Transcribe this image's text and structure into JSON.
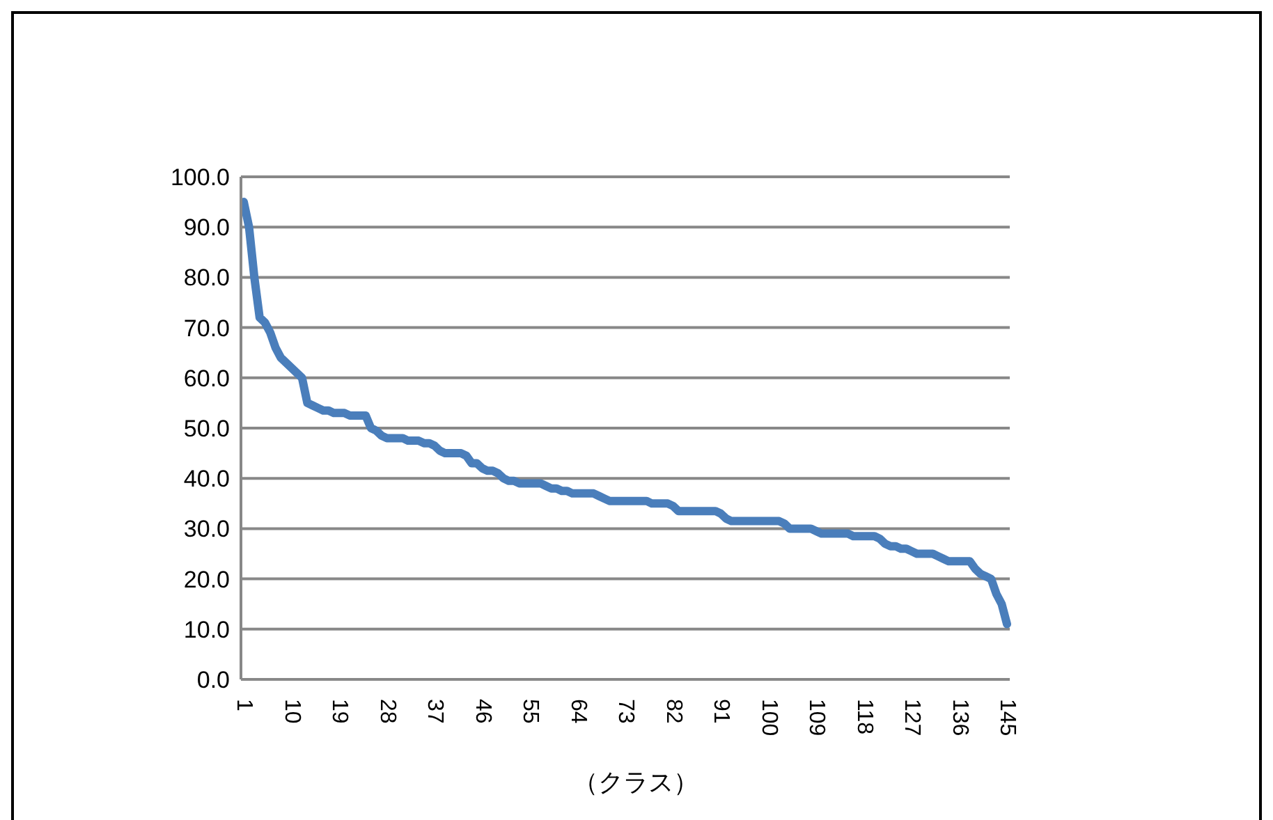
{
  "chart_data": {
    "type": "line",
    "xlabel": "（クラス）",
    "categories": [
      "1",
      null,
      null,
      null,
      null,
      null,
      null,
      null,
      null,
      "10",
      null,
      null,
      null,
      null,
      null,
      null,
      null,
      null,
      "19",
      null,
      null,
      null,
      null,
      null,
      null,
      null,
      null,
      "28",
      null,
      null,
      null,
      null,
      null,
      null,
      null,
      null,
      "37",
      null,
      null,
      null,
      null,
      null,
      null,
      null,
      null,
      "46",
      null,
      null,
      null,
      null,
      null,
      null,
      null,
      null,
      "55",
      null,
      null,
      null,
      null,
      null,
      null,
      null,
      null,
      "64",
      null,
      null,
      null,
      null,
      null,
      null,
      null,
      null,
      "73",
      null,
      null,
      null,
      null,
      null,
      null,
      null,
      null,
      "82",
      null,
      null,
      null,
      null,
      null,
      null,
      null,
      null,
      "91",
      null,
      null,
      null,
      null,
      null,
      null,
      null,
      null,
      "100",
      null,
      null,
      null,
      null,
      null,
      null,
      null,
      null,
      "109",
      null,
      null,
      null,
      null,
      null,
      null,
      null,
      null,
      "118",
      null,
      null,
      null,
      null,
      null,
      null,
      null,
      null,
      "127",
      null,
      null,
      null,
      null,
      null,
      null,
      null,
      null,
      "136",
      null,
      null,
      null,
      null,
      null,
      null,
      null,
      null,
      "145"
    ],
    "series": [
      {
        "color": "#4a7ebb",
        "values": [
          95,
          90,
          80,
          72,
          71,
          69,
          66,
          64,
          63,
          62,
          61,
          60,
          55,
          54.5,
          54,
          53.5,
          53.5,
          53,
          53,
          53,
          52.5,
          52.5,
          52.5,
          52.5,
          50,
          49.5,
          48.5,
          48,
          48,
          48,
          48,
          47.5,
          47.5,
          47.5,
          47,
          47,
          46.5,
          45.5,
          45,
          45,
          45,
          45,
          44.5,
          43,
          43,
          42,
          41.5,
          41.5,
          41,
          40,
          39.5,
          39.5,
          39,
          39,
          39,
          39,
          39,
          38.5,
          38,
          38,
          37.5,
          37.5,
          37,
          37,
          37,
          37,
          37,
          36.5,
          36,
          35.5,
          35.5,
          35.5,
          35.5,
          35.5,
          35.5,
          35.5,
          35.5,
          35,
          35,
          35,
          35,
          34.5,
          33.5,
          33.5,
          33.5,
          33.5,
          33.5,
          33.5,
          33.5,
          33.5,
          33,
          32,
          31.5,
          31.5,
          31.5,
          31.5,
          31.5,
          31.5,
          31.5,
          31.5,
          31.5,
          31.5,
          31,
          30,
          30,
          30,
          30,
          30,
          29.5,
          29,
          29,
          29,
          29,
          29,
          29,
          28.5,
          28.5,
          28.5,
          28.5,
          28.5,
          28,
          27,
          26.5,
          26.5,
          26,
          26,
          25.5,
          25,
          25,
          25,
          25,
          24.5,
          24,
          23.5,
          23.5,
          23.5,
          23.5,
          23.5,
          22,
          21,
          20.5,
          20,
          17,
          15,
          11
        ]
      }
    ],
    "ylim": [
      0,
      100
    ],
    "yticks": [
      {
        "value": 0,
        "label": "0.0"
      },
      {
        "value": 10,
        "label": "10.0"
      },
      {
        "value": 20,
        "label": "20.0"
      },
      {
        "value": 30,
        "label": "30.0"
      },
      {
        "value": 40,
        "label": "40.0"
      },
      {
        "value": 50,
        "label": "50.0"
      },
      {
        "value": 60,
        "label": "60.0"
      },
      {
        "value": 70,
        "label": "70.0"
      },
      {
        "value": 80,
        "label": "80.0"
      },
      {
        "value": 90,
        "label": "90.0"
      },
      {
        "value": 100,
        "label": "100.0"
      }
    ],
    "grid": "y",
    "marker": "none",
    "line_style": "solid"
  }
}
